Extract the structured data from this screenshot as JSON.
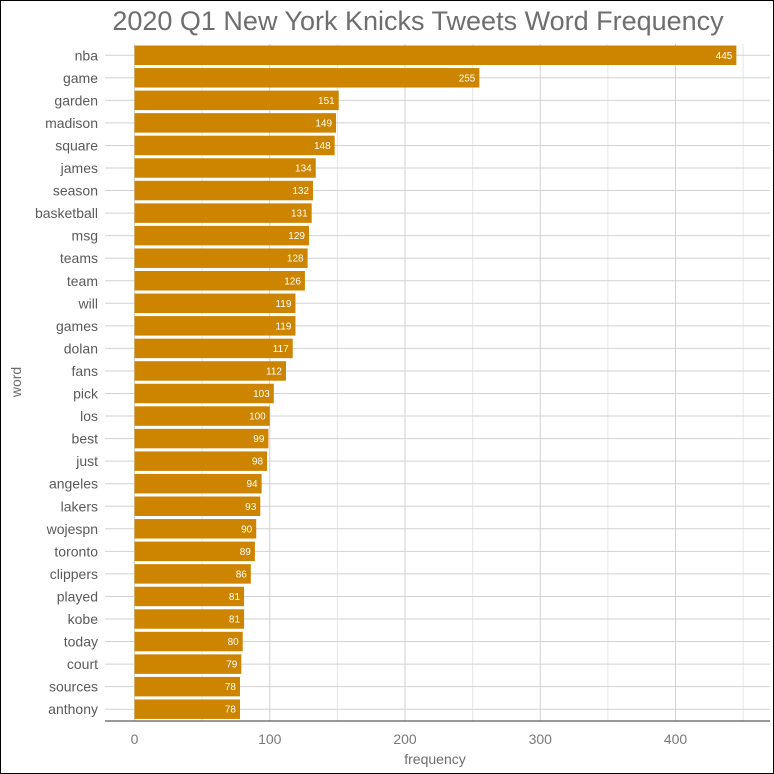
{
  "chart_data": {
    "type": "bar",
    "orientation": "horizontal",
    "title": "2020 Q1 New York Knicks Tweets Word Frequency",
    "xlabel": "frequency",
    "ylabel": "word",
    "xlim": [
      0,
      460
    ],
    "x_ticks": [
      0,
      100,
      200,
      300,
      400
    ],
    "grid": true,
    "bar_color": "#CD8500",
    "categories": [
      "nba",
      "game",
      "garden",
      "madison",
      "square",
      "james",
      "season",
      "basketball",
      "msg",
      "teams",
      "team",
      "will",
      "games",
      "dolan",
      "fans",
      "pick",
      "los",
      "best",
      "just",
      "angeles",
      "lakers",
      "wojespn",
      "toronto",
      "clippers",
      "played",
      "kobe",
      "today",
      "court",
      "sources",
      "anthony"
    ],
    "values": [
      445,
      255,
      151,
      149,
      148,
      134,
      132,
      131,
      129,
      128,
      126,
      119,
      119,
      117,
      112,
      103,
      100,
      99,
      98,
      94,
      93,
      90,
      89,
      86,
      81,
      81,
      80,
      79,
      78,
      78
    ]
  }
}
